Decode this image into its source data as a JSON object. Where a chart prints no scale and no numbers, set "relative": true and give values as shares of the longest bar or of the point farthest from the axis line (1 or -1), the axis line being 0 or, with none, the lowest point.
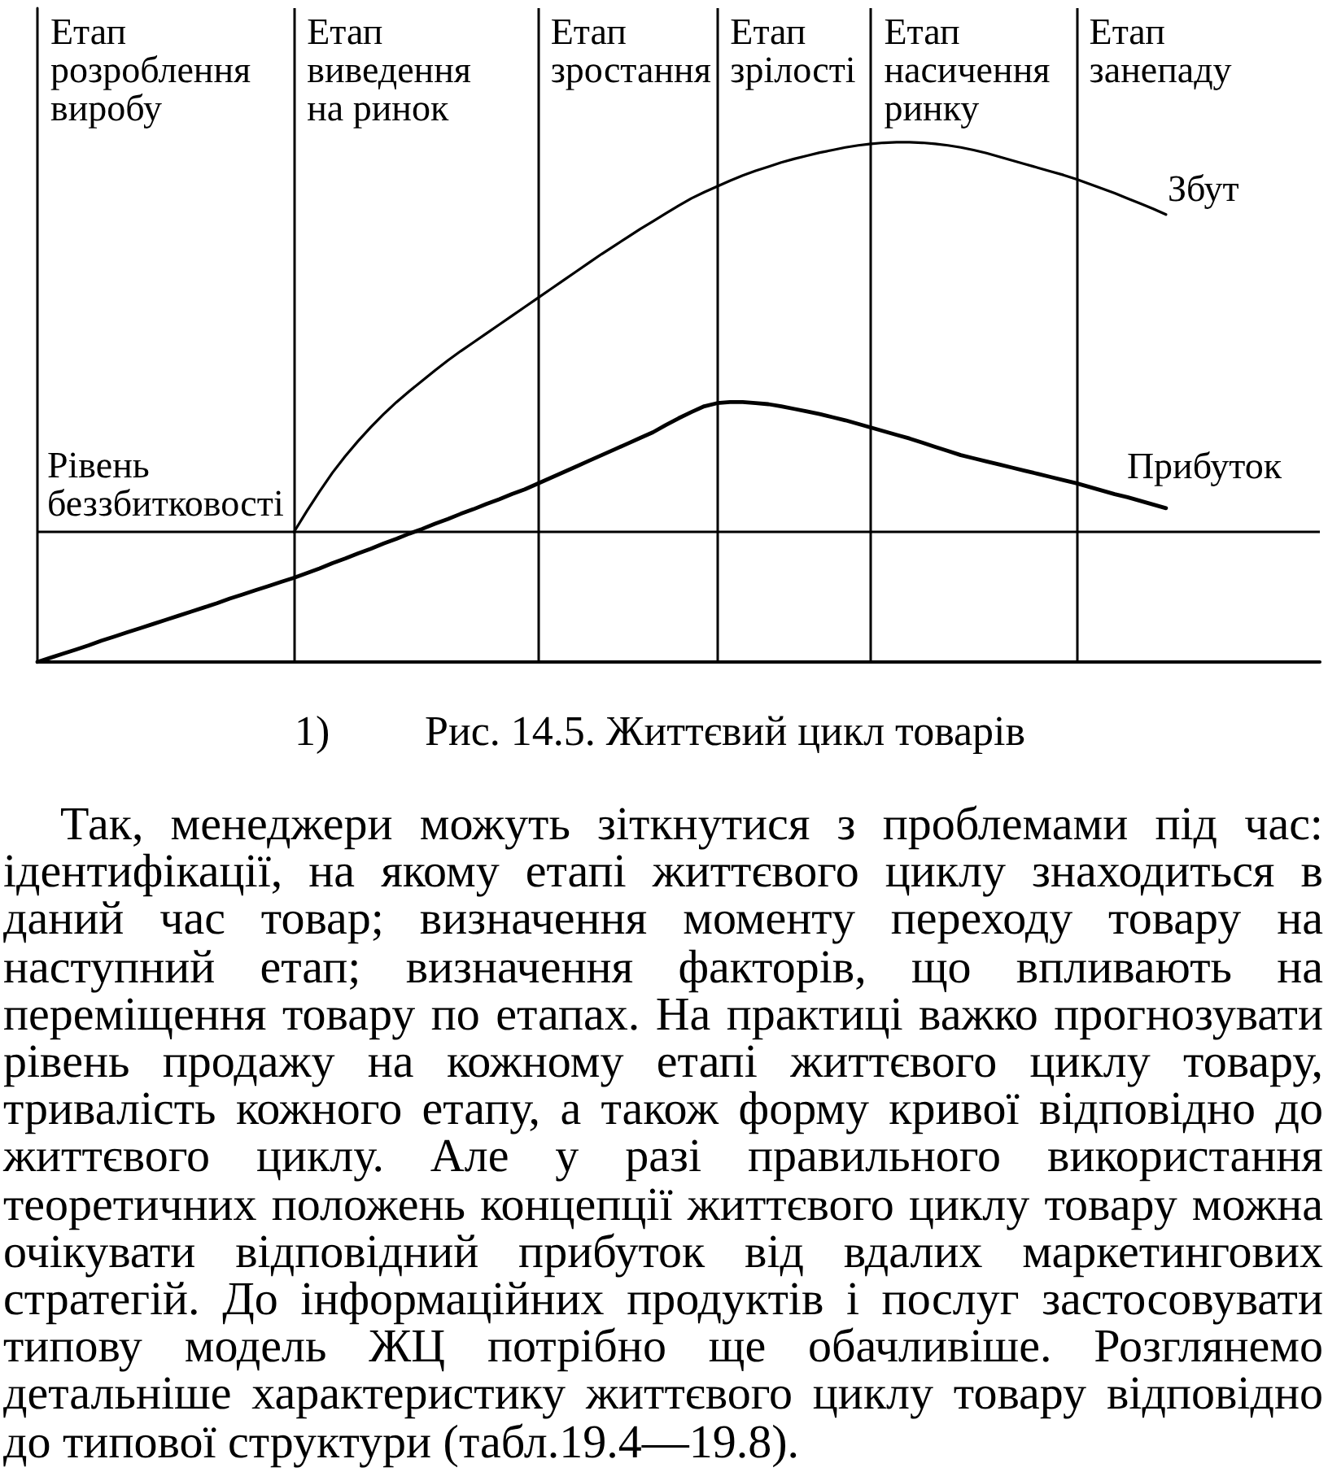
{
  "chart_data": {
    "type": "line",
    "title": "Рис. 14.5. Життєвий цикл товарів",
    "annotations": [
      "Етап розроблення виробу",
      "Етап виведення на ринок",
      "Етап зростання",
      "Етап зрілості",
      "Етап насичення ринку",
      "Етап занепаду",
      "1)",
      "Так, менеджери можуть зіткнутися з проблемами під час: ідентифікації, на якому етапі життєвого циклу знаходиться в даний час товар; визначення моменту переходу товару на наступний етап; визначення факторів, що впливають на переміщення товару по етапах. На практиці важко прогнозувати рівень продажу на кожному етапі життєвого циклу товару, тривалість кожного етапу, а також форму кривої відповідно до життєвого циклу. Але у разі правильного використання теоретичних положень концепції життєвого циклу товару можна очікувати відповідний прибуток від вдалих маркетингових стратегій. До інформаційних продуктів і послуг застосовувати типову модель ЖЦ потрібно ще обачливіше. Розглянемо детальніше характеристику життєвого циклу товару відповідно до типової структури (табл.19.4—19.8)."
    ],
    "relative": true,
    "grid": "x",
    "categories": [
      null,
      null,
      null,
      null,
      null,
      null,
      null,
      null,
      null,
      null,
      null,
      null,
      null,
      null,
      null,
      null,
      null,
      null,
      null,
      null,
      null,
      null,
      null,
      null,
      null,
      null,
      null,
      null,
      null,
      null,
      null,
      null,
      null,
      null,
      null,
      null,
      null,
      null,
      null,
      null,
      null,
      null,
      null,
      null,
      null,
      null,
      null,
      null,
      null,
      null,
      null,
      null,
      null,
      null,
      null,
      null,
      null,
      null,
      null,
      null,
      null,
      null,
      null,
      null,
      null,
      null,
      null,
      null,
      null,
      null,
      null,
      null,
      null,
      null,
      null,
      null,
      null,
      null,
      null,
      null,
      null,
      null,
      null,
      null,
      null,
      null,
      null,
      null,
      null,
      null,
      null,
      null,
      null,
      null,
      null,
      null,
      null,
      null,
      null,
      null,
      null
    ],
    "series": [
      {
        "name": "Збут",
        "color": "#000000",
        "values": [
          null,
          null,
          null,
          null,
          null,
          null,
          null,
          null,
          null,
          null,
          null,
          null,
          null,
          null,
          null,
          null,
          null,
          null,
          null,
          null,
          0.25,
          0.29,
          0.328,
          0.364,
          0.396,
          0.425,
          0.452,
          0.477,
          0.5,
          0.521,
          0.541,
          0.561,
          0.58,
          0.598,
          0.615,
          0.632,
          0.649,
          0.666,
          0.683,
          0.7,
          0.717,
          0.734,
          0.751,
          0.768,
          0.785,
          0.801,
          0.817,
          0.833,
          0.848,
          0.863,
          0.878,
          0.892,
          0.904,
          0.915,
          0.926,
          0.936,
          0.945,
          0.953,
          0.961,
          0.968,
          0.974,
          0.98,
          0.985,
          0.99,
          0.994,
          0.997,
          0.999,
          1,
          1,
          0.999,
          0.997,
          0.994,
          0.99,
          0.985,
          0.979,
          0.972,
          0.965,
          0.958,
          0.951,
          0.944,
          0.937,
          0.929,
          0.92,
          0.911,
          0.902,
          0.892,
          0.882,
          0.872,
          0.861,
          null,
          null,
          null,
          null,
          null,
          null,
          null,
          null,
          null,
          null,
          null,
          null
        ]
      },
      {
        "name": "Прибуток",
        "color": "#000000",
        "values": [
          0,
          0.008,
          0.016,
          0.024,
          0.032,
          0.041,
          0.049,
          0.057,
          0.065,
          0.073,
          0.081,
          0.089,
          0.097,
          0.105,
          0.113,
          0.122,
          0.13,
          0.138,
          0.146,
          0.154,
          0.162,
          0.171,
          0.18,
          0.19,
          0.199,
          0.209,
          0.218,
          0.228,
          0.237,
          0.247,
          0.256,
          0.266,
          0.275,
          0.285,
          0.294,
          0.304,
          0.313,
          0.323,
          0.332,
          0.343,
          0.354,
          0.365,
          0.376,
          0.387,
          0.398,
          0.409,
          0.42,
          0.431,
          0.442,
          0.456,
          0.469,
          0.481,
          0.492,
          0.498,
          0.5,
          0.5,
          0.498,
          0.496,
          0.492,
          0.487,
          0.482,
          0.477,
          0.471,
          0.465,
          0.458,
          0.451,
          0.444,
          0.437,
          0.43,
          0.422,
          0.414,
          0.406,
          0.398,
          0.392,
          0.386,
          0.38,
          0.374,
          0.368,
          0.362,
          0.356,
          0.35,
          0.344,
          0.337,
          0.33,
          0.323,
          0.317,
          0.31,
          0.303,
          0.296,
          null,
          null,
          null,
          null,
          null,
          null,
          null,
          null,
          null,
          null,
          null,
          null
        ]
      }
    ],
    "ref_lines": [
      {
        "axis": "y",
        "value": 0.25,
        "label": "Рівень беззбитковості"
      }
    ]
  }
}
